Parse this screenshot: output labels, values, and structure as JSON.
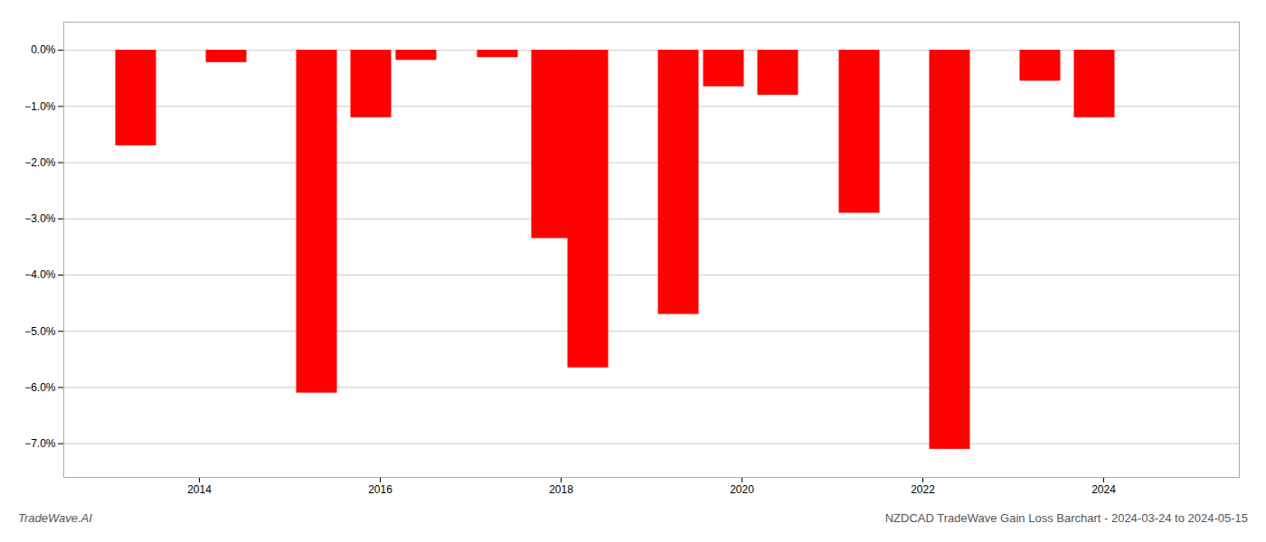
{
  "chart_data": {
    "type": "bar",
    "x": [
      2013.3,
      2014.3,
      2015.3,
      2015.9,
      2016.4,
      2017.3,
      2017.9,
      2018.3,
      2019.3,
      2019.8,
      2020.4,
      2021.3,
      2022.3,
      2023.3,
      2023.9
    ],
    "values": [
      -1.7,
      -0.22,
      -6.1,
      -1.2,
      -0.18,
      -0.13,
      -3.35,
      -5.65,
      -4.7,
      -0.65,
      -0.8,
      -2.9,
      -7.1,
      -0.55,
      -1.2
    ],
    "color": "#ff0000",
    "xlim": [
      2012.5,
      2025.5
    ],
    "xticks": [
      2014,
      2016,
      2018,
      2020,
      2022,
      2024
    ],
    "ylim": [
      -7.6,
      0.5
    ],
    "yticks": [
      {
        "value": 0.0,
        "label": "0.0%"
      },
      {
        "value": -1.0,
        "label": "−1.0%"
      },
      {
        "value": -2.0,
        "label": "−2.0%"
      },
      {
        "value": -3.0,
        "label": "−3.0%"
      },
      {
        "value": -4.0,
        "label": "−4.0%"
      },
      {
        "value": -5.0,
        "label": "−5.0%"
      },
      {
        "value": -6.0,
        "label": "−6.0%"
      },
      {
        "value": -7.0,
        "label": "−7.0%"
      }
    ],
    "grid": true,
    "annotations": [
      "TradeWave.AI",
      "NZDCAD TradeWave Gain Loss Barchart - 2024-03-24 to 2024-05-15"
    ]
  }
}
